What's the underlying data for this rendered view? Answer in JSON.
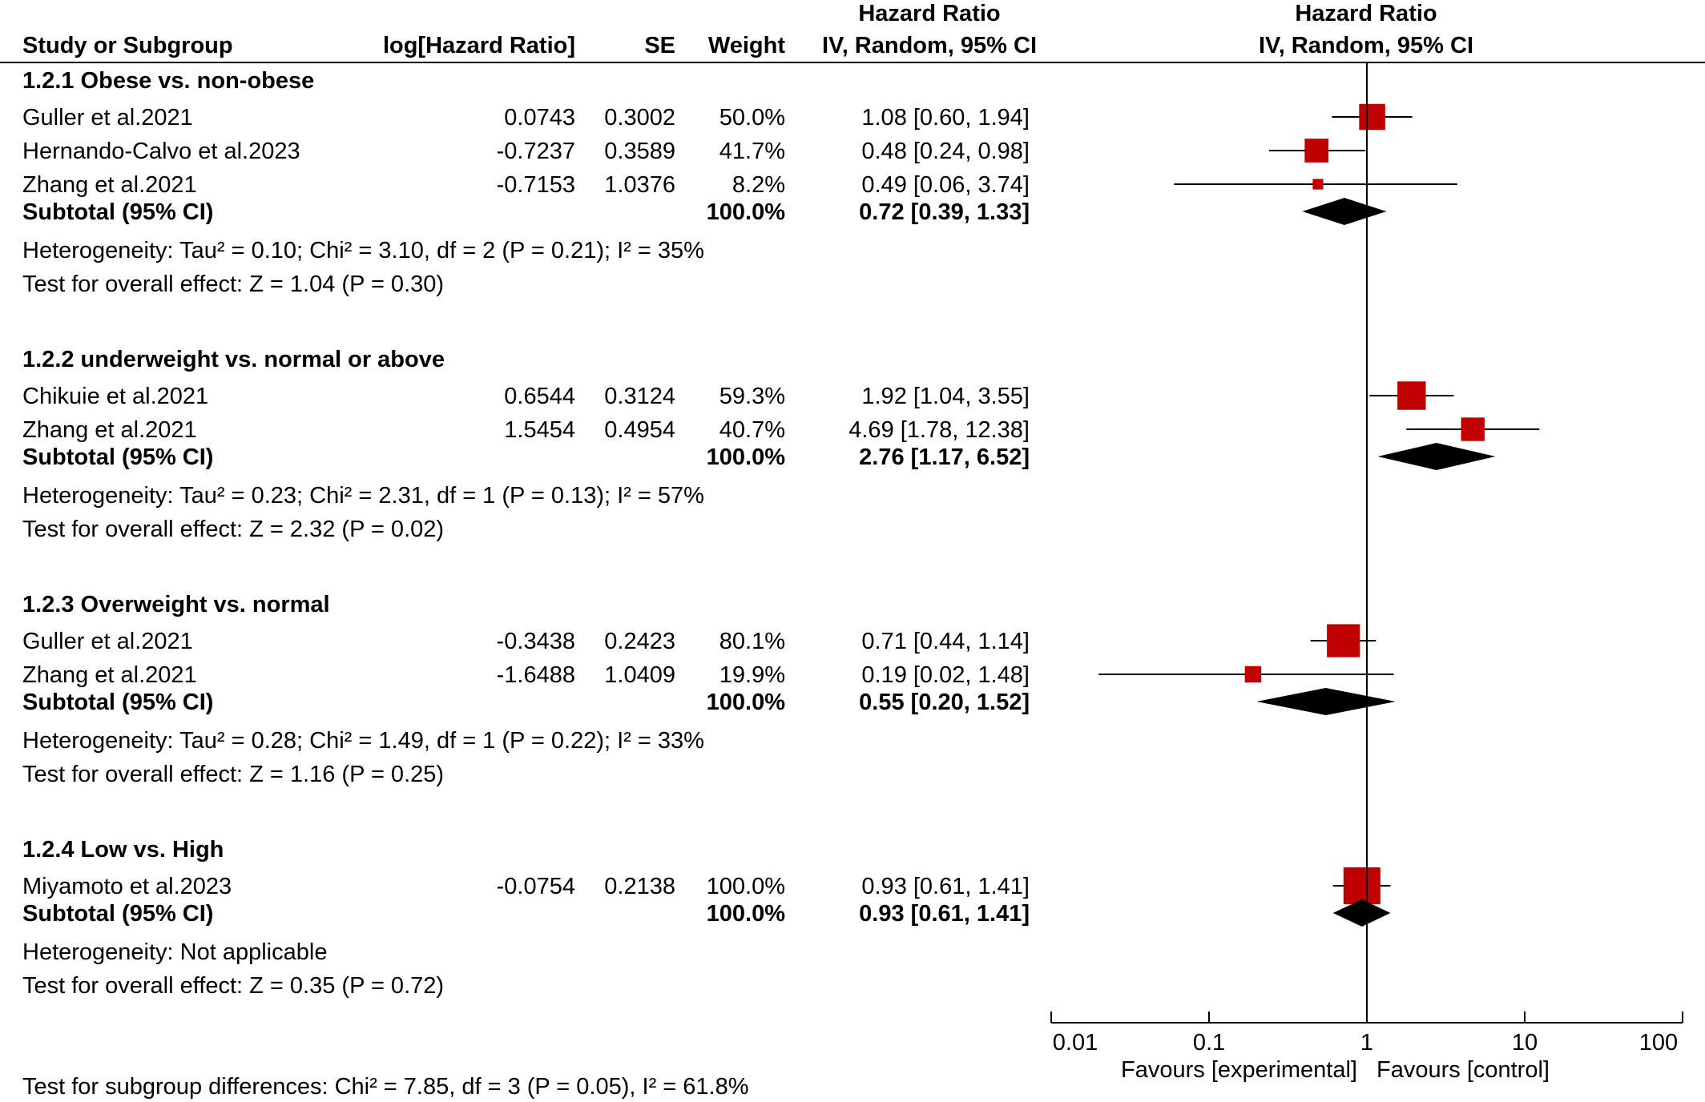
{
  "header": {
    "col_study": "Study or Subgroup",
    "col_loghr": "log[Hazard Ratio]",
    "col_se": "SE",
    "col_weight": "Weight",
    "col_hr_title": "Hazard Ratio",
    "col_hr_sub": "IV, Random, 95% CI",
    "plot_title": "Hazard Ratio",
    "plot_sub": "IV, Random, 95% CI"
  },
  "chart_data": {
    "type": "forest",
    "x_scale": "log",
    "xlim": [
      0.01,
      100
    ],
    "x_ticks": [
      "0.01",
      "0.1",
      "1",
      "10",
      "100"
    ],
    "null_line": 1,
    "favours_left": "Favours [experimental]",
    "favours_right": "Favours [control]",
    "marker_color": "#c00000",
    "subgroups": [
      {
        "title": "1.2.1 Obese vs. non-obese",
        "studies": [
          {
            "name": "Guller et al.2021",
            "loghr": "0.0743",
            "se": "0.3002",
            "weight": "50.0%",
            "ci_text": "1.08 [0.60, 1.94]",
            "hr": 1.08,
            "lo": 0.6,
            "hi": 1.94,
            "w": 50.0
          },
          {
            "name": "Hernando-Calvo et al.2023",
            "loghr": "-0.7237",
            "se": "0.3589",
            "weight": "41.7%",
            "ci_text": "0.48 [0.24, 0.98]",
            "hr": 0.48,
            "lo": 0.24,
            "hi": 0.98,
            "w": 41.7
          },
          {
            "name": "Zhang et al.2021",
            "loghr": "-0.7153",
            "se": "1.0376",
            "weight": "8.2%",
            "ci_text": "0.49 [0.06, 3.74]",
            "hr": 0.49,
            "lo": 0.06,
            "hi": 3.74,
            "w": 8.2
          }
        ],
        "subtotal": {
          "label": "Subtotal (95% CI)",
          "weight": "100.0%",
          "ci_text": "0.72 [0.39, 1.33]",
          "hr": 0.72,
          "lo": 0.39,
          "hi": 1.33
        },
        "heterogeneity": "Heterogeneity: Tau² = 0.10; Chi² = 3.10, df = 2 (P = 0.21); I² = 35%",
        "overall": "Test for overall effect: Z = 1.04 (P = 0.30)"
      },
      {
        "title": "1.2.2 underweight vs. normal or above",
        "studies": [
          {
            "name": "Chikuie et al.2021",
            "loghr": "0.6544",
            "se": "0.3124",
            "weight": "59.3%",
            "ci_text": "1.92 [1.04, 3.55]",
            "hr": 1.92,
            "lo": 1.04,
            "hi": 3.55,
            "w": 59.3
          },
          {
            "name": "Zhang et al.2021",
            "loghr": "1.5454",
            "se": "0.4954",
            "weight": "40.7%",
            "ci_text": "4.69 [1.78, 12.38]",
            "hr": 4.69,
            "lo": 1.78,
            "hi": 12.38,
            "w": 40.7
          }
        ],
        "subtotal": {
          "label": "Subtotal (95% CI)",
          "weight": "100.0%",
          "ci_text": "2.76 [1.17, 6.52]",
          "hr": 2.76,
          "lo": 1.17,
          "hi": 6.52
        },
        "heterogeneity": "Heterogeneity: Tau² = 0.23; Chi² = 2.31, df = 1 (P = 0.13); I² = 57%",
        "overall": "Test for overall effect: Z = 2.32 (P = 0.02)"
      },
      {
        "title": "1.2.3 Overweight vs. normal",
        "studies": [
          {
            "name": "Guller et al.2021",
            "loghr": "-0.3438",
            "se": "0.2423",
            "weight": "80.1%",
            "ci_text": "0.71 [0.44, 1.14]",
            "hr": 0.71,
            "lo": 0.44,
            "hi": 1.14,
            "w": 80.1
          },
          {
            "name": "Zhang et al.2021",
            "loghr": "-1.6488",
            "se": "1.0409",
            "weight": "19.9%",
            "ci_text": "0.19 [0.02, 1.48]",
            "hr": 0.19,
            "lo": 0.02,
            "hi": 1.48,
            "w": 19.9
          }
        ],
        "subtotal": {
          "label": "Subtotal (95% CI)",
          "weight": "100.0%",
          "ci_text": "0.55 [0.20, 1.52]",
          "hr": 0.55,
          "lo": 0.2,
          "hi": 1.52
        },
        "heterogeneity": "Heterogeneity: Tau² = 0.28; Chi² = 1.49, df = 1 (P = 0.22); I² = 33%",
        "overall": "Test for overall effect: Z = 1.16 (P = 0.25)"
      },
      {
        "title": "1.2.4 Low vs. High",
        "studies": [
          {
            "name": "Miyamoto et al.2023",
            "loghr": "-0.0754",
            "se": "0.2138",
            "weight": "100.0%",
            "ci_text": "0.93 [0.61, 1.41]",
            "hr": 0.93,
            "lo": 0.61,
            "hi": 1.41,
            "w": 100.0
          }
        ],
        "subtotal": {
          "label": "Subtotal (95% CI)",
          "weight": "100.0%",
          "ci_text": "0.93 [0.61, 1.41]",
          "hr": 0.93,
          "lo": 0.61,
          "hi": 1.41
        },
        "heterogeneity": "Heterogeneity: Not applicable",
        "overall": "Test for overall effect: Z = 0.35 (P = 0.72)"
      }
    ],
    "subgroup_differences": "Test for subgroup differences: Chi² = 7.85, df = 3 (P = 0.05), I² = 61.8%"
  }
}
